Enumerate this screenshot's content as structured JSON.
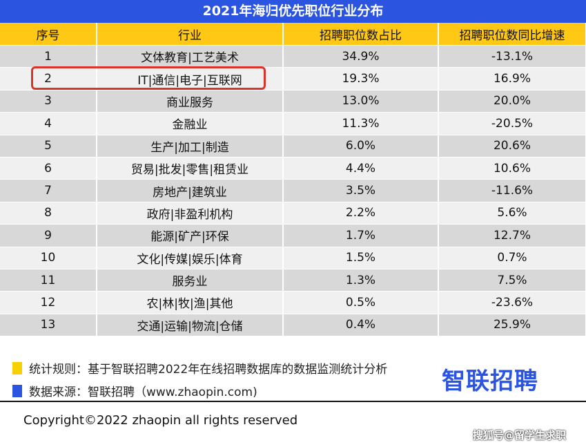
{
  "chart_data": {
    "type": "table",
    "title": "2021年海归优先职位行业分布",
    "columns": [
      "序号",
      "行业",
      "招聘职位数占比",
      "招聘职位数同比增速"
    ],
    "rows": [
      [
        "1",
        "文体教育|工艺美术",
        "34.9%",
        "-13.1%"
      ],
      [
        "2",
        "IT|通信|电子|互联网",
        "19.3%",
        "16.9%"
      ],
      [
        "3",
        "商业服务",
        "13.0%",
        "20.0%"
      ],
      [
        "4",
        "金融业",
        "11.3%",
        "-20.5%"
      ],
      [
        "5",
        "生产|加工|制造",
        "6.0%",
        "20.6%"
      ],
      [
        "6",
        "贸易|批发|零售|租赁业",
        "4.4%",
        "10.6%"
      ],
      [
        "7",
        "房地产|建筑业",
        "3.5%",
        "-11.6%"
      ],
      [
        "8",
        "政府|非盈利机构",
        "2.2%",
        "5.6%"
      ],
      [
        "9",
        "能源|矿产|环保",
        "1.7%",
        "12.7%"
      ],
      [
        "10",
        "文化|传媒|娱乐|体育",
        "1.5%",
        "0.7%"
      ],
      [
        "11",
        "服务业",
        "1.3%",
        "7.5%"
      ],
      [
        "12",
        "农|林|牧|渔|其他",
        "0.5%",
        "-23.6%"
      ],
      [
        "13",
        "交通|运输|物流|仓储",
        "0.4%",
        "25.9%"
      ]
    ],
    "highlighted_row": 2,
    "colors": {
      "title_bg": "#2b54e0",
      "header_bg": "#ffc814",
      "highlight_border": "#d9342b"
    }
  },
  "footer": {
    "rule_note": "统计规则：基于智联招聘2022年在线招聘数据库的数据监测统计分析",
    "source_note": "数据来源：智联招聘（www.zhaopin.com)",
    "logo": "智联招聘",
    "copyright": "Copyright©2022 zhaopin all rights reserved",
    "watermark": "搜狐号@留学生求职"
  }
}
